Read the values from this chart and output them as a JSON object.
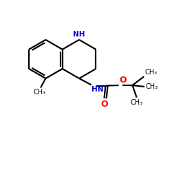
{
  "background_color": "#ffffff",
  "bond_color": "#000000",
  "nitrogen_color": "#0000cc",
  "oxygen_color": "#ff0000",
  "figsize": [
    2.5,
    2.5
  ],
  "dpi": 100,
  "xlim": [
    0,
    10
  ],
  "ylim": [
    0,
    10
  ]
}
